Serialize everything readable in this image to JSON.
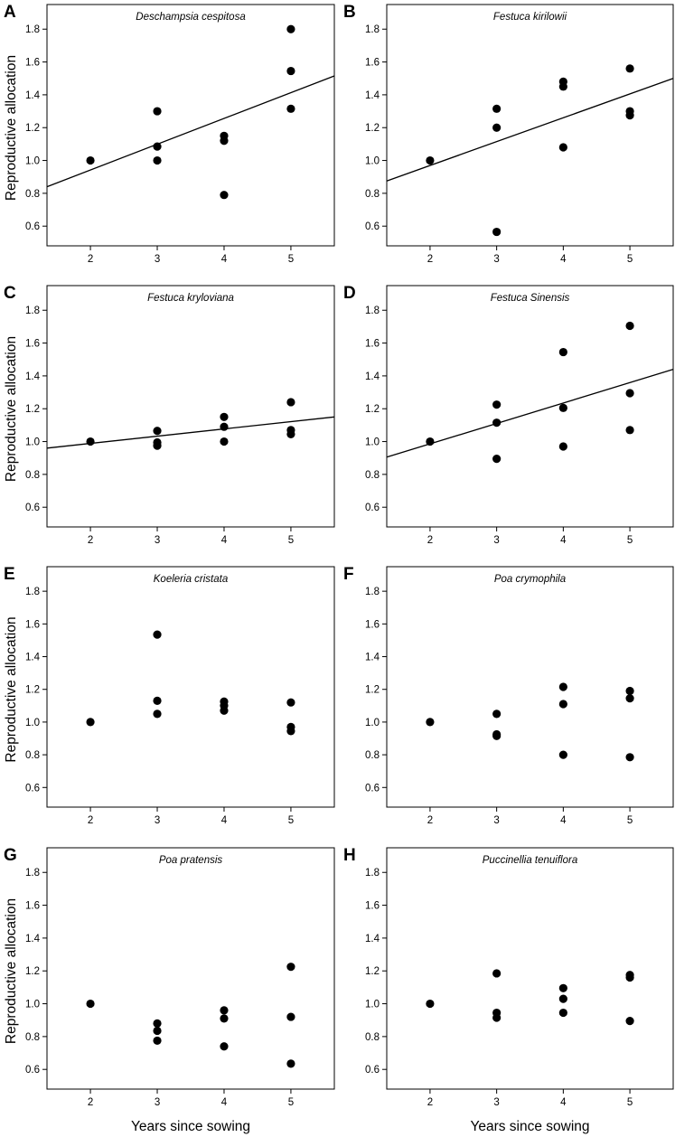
{
  "chart_data": [
    {
      "type": "scatter",
      "panel": "A",
      "title": "Deschampsia cespitosa",
      "xlabel": "",
      "ylabel": "Reproductive allocation",
      "x_ticks": [
        "2",
        "3",
        "4",
        "5"
      ],
      "y_ticks": [
        "0.6",
        "0.8",
        "1.0",
        "1.2",
        "1.4",
        "1.6",
        "1.8"
      ],
      "xlim": [
        1.35,
        5.65
      ],
      "ylim": [
        0.48,
        1.95
      ],
      "points": [
        [
          2,
          1.0
        ],
        [
          3,
          1.3
        ],
        [
          3,
          1.085
        ],
        [
          3,
          1.0
        ],
        [
          4,
          1.15
        ],
        [
          4,
          1.12
        ],
        [
          4,
          0.79
        ],
        [
          5,
          1.8
        ],
        [
          5,
          1.545
        ],
        [
          5,
          1.315
        ]
      ],
      "trend": [
        [
          1.35,
          0.84
        ],
        [
          5.65,
          1.515
        ]
      ]
    },
    {
      "type": "scatter",
      "panel": "B",
      "title": "Festuca kirilowii",
      "xlabel": "",
      "ylabel": "",
      "x_ticks": [
        "2",
        "3",
        "4",
        "5"
      ],
      "y_ticks": [
        "0.6",
        "0.8",
        "1.0",
        "1.2",
        "1.4",
        "1.6",
        "1.8"
      ],
      "xlim": [
        1.35,
        5.65
      ],
      "ylim": [
        0.48,
        1.95
      ],
      "points": [
        [
          2,
          1.0
        ],
        [
          3,
          1.315
        ],
        [
          3,
          1.2
        ],
        [
          3,
          0.565
        ],
        [
          4,
          1.48
        ],
        [
          4,
          1.45
        ],
        [
          4,
          1.08
        ],
        [
          5,
          1.56
        ],
        [
          5,
          1.3
        ],
        [
          5,
          1.275
        ]
      ],
      "trend": [
        [
          1.35,
          0.875
        ],
        [
          5.65,
          1.5
        ]
      ]
    },
    {
      "type": "scatter",
      "panel": "C",
      "title": "Festuca kryloviana",
      "xlabel": "",
      "ylabel": "Reproductive allocation",
      "x_ticks": [
        "2",
        "3",
        "4",
        "5"
      ],
      "y_ticks": [
        "0.6",
        "0.8",
        "1.0",
        "1.2",
        "1.4",
        "1.6",
        "1.8"
      ],
      "xlim": [
        1.35,
        5.65
      ],
      "ylim": [
        0.48,
        1.95
      ],
      "points": [
        [
          2,
          1.0
        ],
        [
          3,
          1.065
        ],
        [
          3,
          0.995
        ],
        [
          3,
          0.975
        ],
        [
          4,
          1.15
        ],
        [
          4,
          1.09
        ],
        [
          4,
          1.0
        ],
        [
          5,
          1.24
        ],
        [
          5,
          1.07
        ],
        [
          5,
          1.045
        ]
      ],
      "trend": [
        [
          1.35,
          0.96
        ],
        [
          5.65,
          1.15
        ]
      ]
    },
    {
      "type": "scatter",
      "panel": "D",
      "title": "Festuca Sinensis",
      "xlabel": "",
      "ylabel": "",
      "x_ticks": [
        "2",
        "3",
        "4",
        "5"
      ],
      "y_ticks": [
        "0.6",
        "0.8",
        "1.0",
        "1.2",
        "1.4",
        "1.6",
        "1.8"
      ],
      "xlim": [
        1.35,
        5.65
      ],
      "ylim": [
        0.48,
        1.95
      ],
      "points": [
        [
          2,
          1.0
        ],
        [
          3,
          1.225
        ],
        [
          3,
          1.115
        ],
        [
          3,
          0.895
        ],
        [
          4,
          1.545
        ],
        [
          4,
          1.205
        ],
        [
          4,
          0.97
        ],
        [
          5,
          1.705
        ],
        [
          5,
          1.295
        ],
        [
          5,
          1.07
        ]
      ],
      "trend": [
        [
          1.35,
          0.905
        ],
        [
          5.65,
          1.44
        ]
      ]
    },
    {
      "type": "scatter",
      "panel": "E",
      "title": "Koeleria cristata",
      "xlabel": "",
      "ylabel": "Reproductive allocation",
      "x_ticks": [
        "2",
        "3",
        "4",
        "5"
      ],
      "y_ticks": [
        "0.6",
        "0.8",
        "1.0",
        "1.2",
        "1.4",
        "1.6",
        "1.8"
      ],
      "xlim": [
        1.35,
        5.65
      ],
      "ylim": [
        0.48,
        1.95
      ],
      "points": [
        [
          2,
          1.0
        ],
        [
          3,
          1.535
        ],
        [
          3,
          1.13
        ],
        [
          3,
          1.05
        ],
        [
          4,
          1.125
        ],
        [
          4,
          1.1
        ],
        [
          4,
          1.07
        ],
        [
          5,
          1.12
        ],
        [
          5,
          0.97
        ],
        [
          5,
          0.945
        ]
      ],
      "trend": null
    },
    {
      "type": "scatter",
      "panel": "F",
      "title": "Poa crymophila",
      "xlabel": "",
      "ylabel": "",
      "x_ticks": [
        "2",
        "3",
        "4",
        "5"
      ],
      "y_ticks": [
        "0.6",
        "0.8",
        "1.0",
        "1.2",
        "1.4",
        "1.6",
        "1.8"
      ],
      "xlim": [
        1.35,
        5.65
      ],
      "ylim": [
        0.48,
        1.95
      ],
      "points": [
        [
          2,
          1.0
        ],
        [
          3,
          1.05
        ],
        [
          3,
          0.925
        ],
        [
          3,
          0.915
        ],
        [
          4,
          1.215
        ],
        [
          4,
          1.11
        ],
        [
          4,
          0.8
        ],
        [
          5,
          1.19
        ],
        [
          5,
          1.145
        ],
        [
          5,
          0.785
        ]
      ],
      "trend": null
    },
    {
      "type": "scatter",
      "panel": "G",
      "title": "Poa pratensis",
      "xlabel": "Years since sowing",
      "ylabel": "Reproductive allocation",
      "x_ticks": [
        "2",
        "3",
        "4",
        "5"
      ],
      "y_ticks": [
        "0.6",
        "0.8",
        "1.0",
        "1.2",
        "1.4",
        "1.6",
        "1.8"
      ],
      "xlim": [
        1.35,
        5.65
      ],
      "ylim": [
        0.48,
        1.95
      ],
      "points": [
        [
          2,
          1.0
        ],
        [
          3,
          0.88
        ],
        [
          3,
          0.835
        ],
        [
          3,
          0.775
        ],
        [
          4,
          0.96
        ],
        [
          4,
          0.91
        ],
        [
          4,
          0.74
        ],
        [
          5,
          1.225
        ],
        [
          5,
          0.92
        ],
        [
          5,
          0.635
        ]
      ],
      "trend": null
    },
    {
      "type": "scatter",
      "panel": "H",
      "title": "Puccinellia tenuiflora",
      "xlabel": "Years since sowing",
      "ylabel": "",
      "x_ticks": [
        "2",
        "3",
        "4",
        "5"
      ],
      "y_ticks": [
        "0.6",
        "0.8",
        "1.0",
        "1.2",
        "1.4",
        "1.6",
        "1.8"
      ],
      "xlim": [
        1.35,
        5.65
      ],
      "ylim": [
        0.48,
        1.95
      ],
      "points": [
        [
          2,
          1.0
        ],
        [
          3,
          1.185
        ],
        [
          3,
          0.945
        ],
        [
          3,
          0.915
        ],
        [
          4,
          1.095
        ],
        [
          4,
          1.03
        ],
        [
          4,
          0.945
        ],
        [
          5,
          1.175
        ],
        [
          5,
          1.16
        ],
        [
          5,
          0.895
        ]
      ],
      "trend": null
    }
  ]
}
